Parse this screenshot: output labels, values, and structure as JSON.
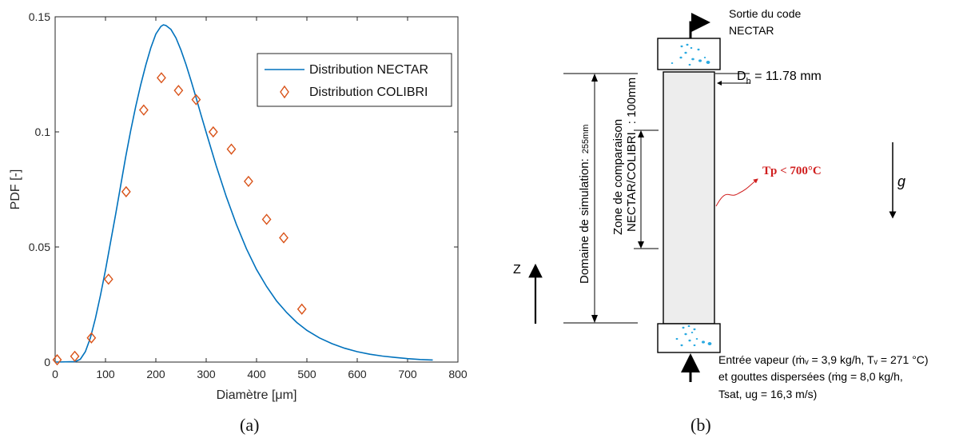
{
  "chart_data": {
    "type": "line",
    "xlabel": "Diamètre [μm]",
    "ylabel": "PDF [-]",
    "xlim": [
      0,
      800
    ],
    "ylim": [
      0,
      0.15
    ],
    "x_ticks": [
      "0",
      "100",
      "200",
      "300",
      "400",
      "500",
      "600",
      "700",
      "800"
    ],
    "y_ticks": [
      "0",
      "0.05",
      "0.1",
      "0.15"
    ],
    "grid": false,
    "legend_position": "top-right",
    "series": [
      {
        "name": "Distribution NECTAR",
        "style": "line",
        "color": "#0072BD",
        "x": [
          0,
          40,
          50,
          60,
          70,
          80,
          90,
          100,
          110,
          120,
          130,
          140,
          150,
          160,
          170,
          180,
          190,
          200,
          210,
          215,
          220,
          230,
          240,
          250,
          260,
          270,
          280,
          290,
          300,
          320,
          340,
          360,
          380,
          400,
          420,
          440,
          460,
          480,
          500,
          525,
          550,
          575,
          600,
          625,
          650,
          675,
          700,
          725,
          750
        ],
        "y": [
          0,
          0.0002,
          0.0012,
          0.0045,
          0.0105,
          0.019,
          0.029,
          0.04,
          0.052,
          0.064,
          0.0765,
          0.089,
          0.1005,
          0.111,
          0.1205,
          0.129,
          0.1365,
          0.1425,
          0.1458,
          0.1465,
          0.1462,
          0.1445,
          0.1408,
          0.1355,
          0.1292,
          0.1222,
          0.1148,
          0.1072,
          0.0998,
          0.0852,
          0.0718,
          0.0598,
          0.0492,
          0.0402,
          0.0328,
          0.0265,
          0.0215,
          0.0172,
          0.0138,
          0.0105,
          0.008,
          0.006,
          0.0045,
          0.0034,
          0.0026,
          0.002,
          0.0015,
          0.0011,
          0.0009
        ]
      },
      {
        "name": "Distribution COLIBRI",
        "style": "marker",
        "marker": "diamond",
        "color": "#D95319",
        "x": [
          4,
          39,
          72,
          106,
          141,
          176,
          211,
          245,
          280,
          314,
          350,
          384,
          420,
          454,
          490
        ],
        "y": [
          0.001,
          0.0025,
          0.0105,
          0.036,
          0.074,
          0.1095,
          0.1235,
          0.118,
          0.114,
          0.1,
          0.0925,
          0.0785,
          0.062,
          0.054,
          0.023
        ]
      }
    ]
  },
  "diagram": {
    "exit_label_line1": "Sortie du code",
    "exit_label_line2": "NECTAR",
    "dh_label": "D",
    "dh_sub": "h",
    "dh_value": " = 11.78 mm",
    "sim_domain_label": "Domaine de simulation:",
    "sim_domain_value": "255mm",
    "comp_zone_line1": "Zone de comparaison",
    "comp_zone_line2": "NECTAR/COLIBRI",
    "comp_zone_value": ": 100mm",
    "temp_label": "Tp < 700°C",
    "g_label": "g",
    "z_label": "Z",
    "inlet_line1": "Entrée vapeur (ṁᵥ = 3,9 kg/h, Tᵥ = 271 °C)",
    "inlet_line2": "et gouttes dispersées (ṁg = 8,0  kg/h,",
    "inlet_line3": "Tsat, ug = 16,3 m/s)",
    "droplet_color": "#29A9E1",
    "temp_color": "#D01E1E"
  },
  "captions": {
    "a": "(a)",
    "b": "(b)"
  }
}
